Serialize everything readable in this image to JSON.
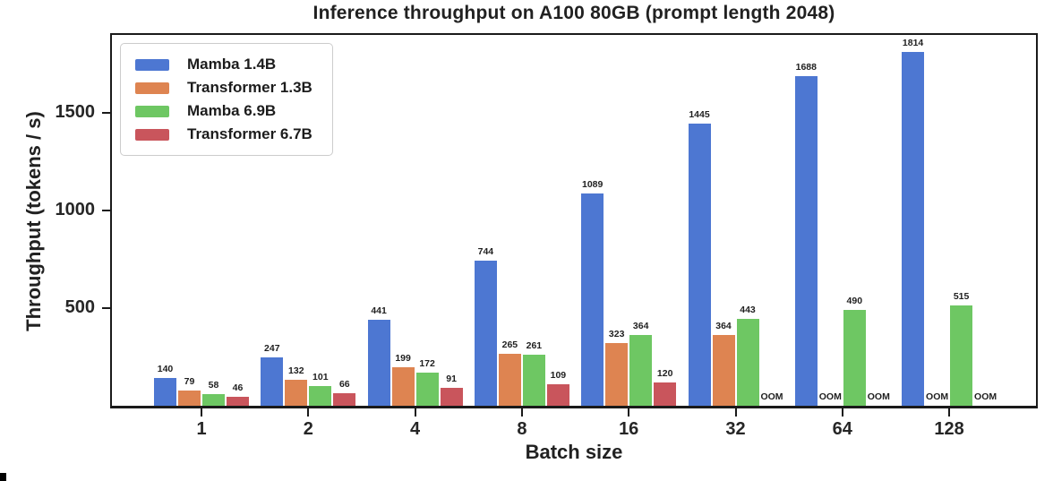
{
  "chart_data": {
    "type": "bar",
    "title": "Inference throughput on A100 80GB (prompt length 2048)",
    "xlabel": "Batch size",
    "ylabel": "Throughput (tokens / s)",
    "categories": [
      "1",
      "2",
      "4",
      "8",
      "16",
      "32",
      "64",
      "128"
    ],
    "series": [
      {
        "name": "Mamba 1.4B",
        "color": "#4d77d2",
        "values": [
          140,
          247,
          441,
          744,
          1089,
          1445,
          1688,
          1814
        ]
      },
      {
        "name": "Transformer 1.3B",
        "color": "#de8451",
        "values": [
          79,
          132,
          199,
          265,
          323,
          364,
          "OOM",
          "OOM"
        ]
      },
      {
        "name": "Mamba 6.9B",
        "color": "#6ec763",
        "values": [
          58,
          101,
          172,
          261,
          364,
          443,
          490,
          515
        ]
      },
      {
        "name": "Transformer 6.7B",
        "color": "#c9555c",
        "values": [
          46,
          66,
          91,
          109,
          120,
          "OOM",
          "OOM",
          "OOM"
        ]
      }
    ],
    "oom_label": "OOM",
    "yticks": [
      500,
      1000,
      1500
    ],
    "ylim": [
      0,
      1900
    ],
    "grid": false,
    "legend_position": "upper left",
    "frame_color": "#1a1a1a",
    "background_color": "#ffffff"
  }
}
